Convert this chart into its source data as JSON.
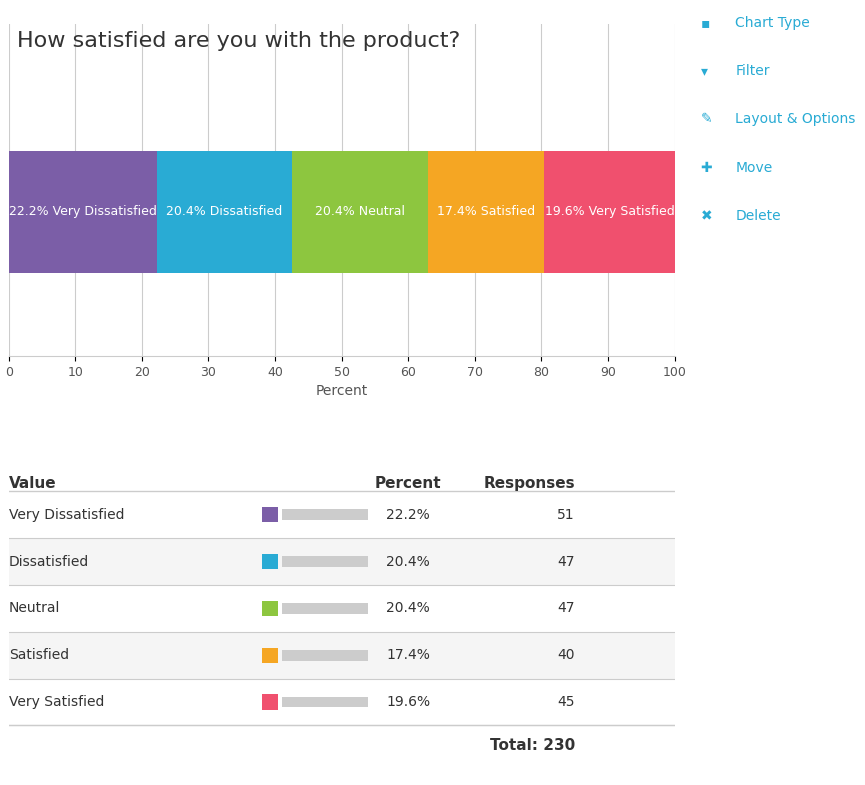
{
  "title": "How satisfied are you with the product?",
  "title_fontsize": 16,
  "title_color": "#333333",
  "categories": [
    "Very Dissatisfied",
    "Dissatisfied",
    "Neutral",
    "Satisfied",
    "Very Satisfied"
  ],
  "values": [
    22.2,
    20.4,
    20.4,
    17.4,
    19.6
  ],
  "responses": [
    51,
    47,
    47,
    40,
    45
  ],
  "total": 230,
  "colors": [
    "#7B5EA7",
    "#29ABD4",
    "#8DC63F",
    "#F5A623",
    "#F0506E"
  ],
  "bar_labels": [
    "22.2% Very Dissatisfied",
    "20.4% Dissatisfied",
    "20.4% Neutral",
    "17.4% Satisfied",
    "19.6% Very Satisfied"
  ],
  "xlabel": "Percent",
  "xticks": [
    0,
    10,
    20,
    30,
    40,
    50,
    60,
    70,
    80,
    90,
    100
  ],
  "xlim": [
    0,
    100
  ],
  "bar_height": 0.6,
  "chart_bg": "#ffffff",
  "table_header_color": "#333333",
  "table_row_colors": [
    "#ffffff",
    "#f5f5f5",
    "#ffffff",
    "#f5f5f5",
    "#ffffff"
  ],
  "sidebar_color": "#29ABD4",
  "sidebar_items": [
    "Chart Type",
    "Filter",
    "Layout & Options",
    "Move",
    "Delete"
  ],
  "label_fontsize": 10,
  "label_color": "#ffffff"
}
